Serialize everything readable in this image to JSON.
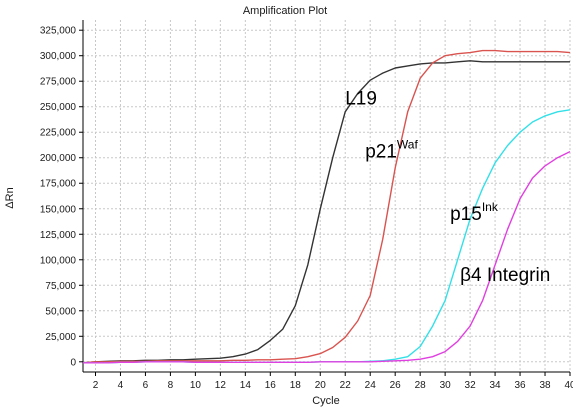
{
  "chart_data": {
    "type": "line",
    "title": "Amplification Plot",
    "xlabel": "Cycle",
    "ylabel": "ΔRn",
    "xlim": [
      1,
      40
    ],
    "ylim": [
      -10000,
      335000
    ],
    "x_ticks": [
      2,
      4,
      6,
      8,
      10,
      12,
      14,
      16,
      18,
      20,
      22,
      24,
      26,
      28,
      30,
      32,
      34,
      36,
      38,
      40
    ],
    "y_ticks": [
      0,
      25000,
      50000,
      75000,
      100000,
      125000,
      150000,
      175000,
      200000,
      225000,
      250000,
      275000,
      300000,
      325000
    ],
    "y_tick_labels": [
      "0",
      "25,000",
      "50,000",
      "75,000",
      "100,000",
      "125,000",
      "150,000",
      "175,000",
      "200,000",
      "225,000",
      "250,000",
      "275,000",
      "300,000",
      "325,000"
    ],
    "grid": true,
    "x": [
      1,
      2,
      3,
      4,
      5,
      6,
      7,
      8,
      9,
      10,
      11,
      12,
      13,
      14,
      15,
      16,
      17,
      18,
      19,
      20,
      21,
      22,
      23,
      24,
      25,
      26,
      27,
      28,
      29,
      30,
      31,
      32,
      33,
      34,
      35,
      36,
      37,
      38,
      39,
      40
    ],
    "series": [
      {
        "name": "L19",
        "color": "#333333",
        "values": [
          -1000,
          0,
          500,
          1000,
          1000,
          1500,
          1500,
          2000,
          2000,
          2500,
          3000,
          3500,
          5000,
          7500,
          12000,
          21000,
          32000,
          55000,
          95000,
          150000,
          200000,
          245000,
          263000,
          276000,
          283000,
          288000,
          290000,
          292000,
          293000,
          293000,
          294000,
          295000,
          294000,
          294000,
          294000,
          294000,
          294000,
          294000,
          294000,
          294000
        ]
      },
      {
        "name": "p21",
        "name_superscript": "Waf",
        "color": "#d9534f",
        "values": [
          -1000,
          0,
          0,
          500,
          500,
          500,
          1000,
          1000,
          1000,
          1000,
          1000,
          1000,
          1500,
          1500,
          2000,
          2000,
          2500,
          3000,
          5000,
          8000,
          14000,
          24000,
          40000,
          65000,
          120000,
          190000,
          245000,
          278000,
          293000,
          300000,
          302000,
          303000,
          305000,
          305000,
          304000,
          304000,
          304000,
          304000,
          304000,
          303000
        ]
      },
      {
        "name": "p15",
        "name_superscript": "Ink",
        "color": "#33e0e8",
        "values": [
          -1000,
          -1000,
          -1000,
          -500,
          -500,
          0,
          0,
          0,
          0,
          -500,
          -500,
          -500,
          -500,
          -500,
          -500,
          -500,
          -500,
          -500,
          -500,
          0,
          0,
          0,
          0,
          500,
          1000,
          2500,
          5000,
          15000,
          35000,
          60000,
          100000,
          140000,
          170000,
          195000,
          212000,
          225000,
          235000,
          241000,
          245000,
          247000
        ]
      },
      {
        "name": "β4 Integrin",
        "color": "#e040e0",
        "values": [
          -1000,
          -1000,
          -1000,
          -500,
          -500,
          0,
          0,
          0,
          0,
          -500,
          -500,
          -500,
          -500,
          -500,
          -500,
          -500,
          -500,
          -500,
          -500,
          0,
          0,
          0,
          0,
          0,
          500,
          1000,
          1500,
          2500,
          5000,
          10000,
          20000,
          35000,
          60000,
          95000,
          130000,
          160000,
          180000,
          192000,
          200000,
          206000
        ]
      }
    ],
    "annotations": [
      {
        "series": "L19",
        "text": "L19",
        "x": 22,
        "y": 252000
      },
      {
        "series": "p21",
        "text": "p21",
        "superscript": "Waf",
        "x": 23.6,
        "y": 200000
      },
      {
        "series": "p15",
        "text": "p15",
        "superscript": "Ink",
        "x": 30.4,
        "y": 139000
      },
      {
        "series": "β4 Integrin",
        "text": "β4 Integrin",
        "x": 31.2,
        "y": 79000
      }
    ]
  }
}
